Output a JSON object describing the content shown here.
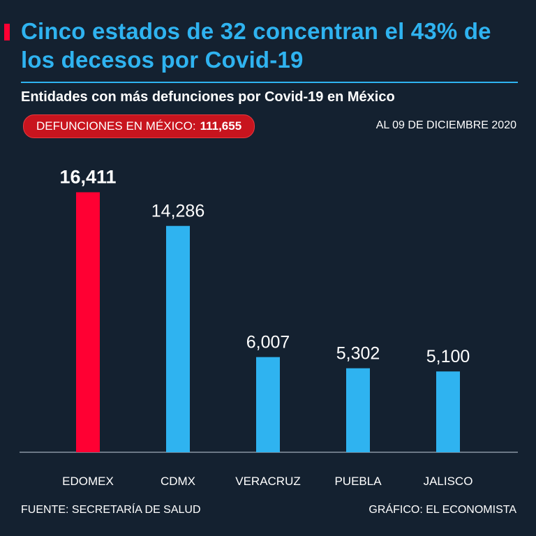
{
  "title": "Cinco estados de 32 concentran el 43% de los decesos por Covid-19",
  "subtitle": "Entidades con más defunciones por Covid-19 en México",
  "badge": {
    "label": "DEFUNCIONES EN MÉXICO:",
    "value": "111,655"
  },
  "date_note": "AL 09 DE DICIEMBRE 2020",
  "footer": {
    "source": "FUENTE: SECRETARÍA DE SALUD",
    "credit": "GRÁFICO: EL ECONOMISTA"
  },
  "colors": {
    "background": "#142130",
    "accent": "#2fb3f0",
    "highlight": "#ff0033"
  },
  "chart_data": {
    "type": "bar",
    "categories": [
      "EDOMEX",
      "CDMX",
      "VERACRUZ",
      "PUEBLA",
      "JALISCO"
    ],
    "values": [
      16411,
      14286,
      6007,
      5302,
      5100
    ],
    "value_labels": [
      "16,411",
      "14,286",
      "6,007",
      "5,302",
      "5,100"
    ],
    "highlight_index": 0,
    "ylim": [
      0,
      20000
    ],
    "grid": false,
    "legend": "none"
  }
}
